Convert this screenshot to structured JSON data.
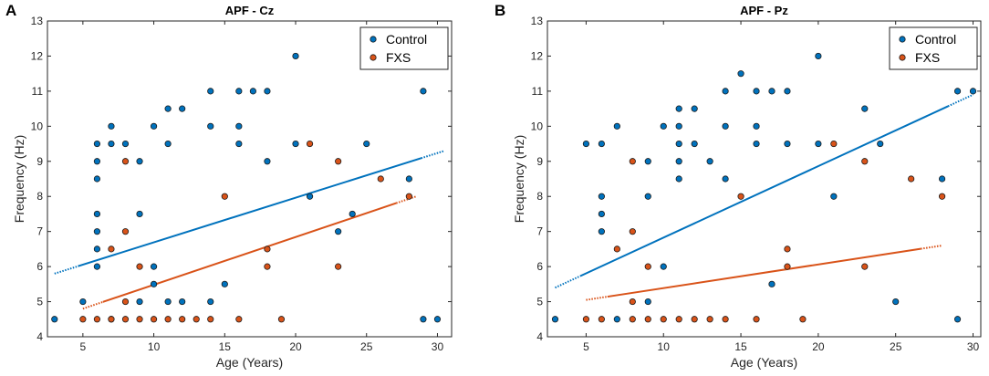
{
  "panel_labels": [
    "A",
    "B"
  ],
  "chart_data": [
    {
      "type": "scatter",
      "title": "APF - Cz",
      "xlabel": "Age (Years)",
      "ylabel": "Frequency (Hz)",
      "xlim": [
        2.5,
        31
      ],
      "ylim": [
        4,
        13
      ],
      "xticks": [
        5,
        10,
        15,
        20,
        25,
        30
      ],
      "yticks": [
        4,
        5,
        6,
        7,
        8,
        9,
        10,
        11,
        12,
        13
      ],
      "legend_position": "top-right",
      "series": [
        {
          "name": "Control",
          "color": "#0072BD",
          "points": [
            [
              3,
              4.5
            ],
            [
              5,
              5
            ],
            [
              6,
              6
            ],
            [
              6,
              6.5
            ],
            [
              6,
              7
            ],
            [
              6,
              7.5
            ],
            [
              6,
              8.5
            ],
            [
              6,
              9
            ],
            [
              6,
              9.5
            ],
            [
              7,
              9.5
            ],
            [
              7,
              10
            ],
            [
              7,
              4.5
            ],
            [
              8,
              9.5
            ],
            [
              9,
              9
            ],
            [
              9,
              7.5
            ],
            [
              9,
              5
            ],
            [
              10,
              10
            ],
            [
              10,
              6
            ],
            [
              10,
              5.5
            ],
            [
              11,
              10.5
            ],
            [
              11,
              9.5
            ],
            [
              11,
              5
            ],
            [
              12,
              10.5
            ],
            [
              12,
              5
            ],
            [
              14,
              11
            ],
            [
              14,
              10
            ],
            [
              14,
              5
            ],
            [
              15,
              5.5
            ],
            [
              16,
              11
            ],
            [
              16,
              10
            ],
            [
              16,
              9.5
            ],
            [
              17,
              11
            ],
            [
              18,
              11
            ],
            [
              18,
              9
            ],
            [
              20,
              12
            ],
            [
              20,
              9.5
            ],
            [
              21,
              8
            ],
            [
              23,
              7
            ],
            [
              24,
              7.5
            ],
            [
              25,
              9.5
            ],
            [
              28,
              8.5
            ],
            [
              29,
              11
            ],
            [
              29,
              4.5
            ],
            [
              30,
              4.5
            ]
          ],
          "fit": [
            [
              3,
              5.8
            ],
            [
              30.5,
              9.3
            ]
          ]
        },
        {
          "name": "FXS",
          "color": "#D95319",
          "points": [
            [
              5,
              4.5
            ],
            [
              6,
              4.5
            ],
            [
              7,
              6.5
            ],
            [
              7,
              4.5
            ],
            [
              8,
              9
            ],
            [
              8,
              7
            ],
            [
              8,
              5
            ],
            [
              8,
              4.5
            ],
            [
              9,
              6
            ],
            [
              9,
              4.5
            ],
            [
              10,
              4.5
            ],
            [
              11,
              4.5
            ],
            [
              12,
              4.5
            ],
            [
              13,
              4.5
            ],
            [
              14,
              4.5
            ],
            [
              15,
              8
            ],
            [
              16,
              4.5
            ],
            [
              18,
              6.5
            ],
            [
              18,
              6
            ],
            [
              19,
              4.5
            ],
            [
              21,
              9.5
            ],
            [
              23,
              9
            ],
            [
              23,
              6
            ],
            [
              26,
              8.5
            ],
            [
              28,
              8
            ]
          ],
          "fit": [
            [
              5,
              4.8
            ],
            [
              28.5,
              8
            ]
          ]
        }
      ]
    },
    {
      "type": "scatter",
      "title": "APF - Pz",
      "xlabel": "Age (Years)",
      "ylabel": "Frequency (Hz)",
      "xlim": [
        2.5,
        30.5
      ],
      "ylim": [
        4,
        13
      ],
      "xticks": [
        5,
        10,
        15,
        20,
        25,
        30
      ],
      "yticks": [
        4,
        5,
        6,
        7,
        8,
        9,
        10,
        11,
        12,
        13
      ],
      "legend_position": "top-right",
      "series": [
        {
          "name": "Control",
          "color": "#0072BD",
          "points": [
            [
              3,
              4.5
            ],
            [
              5,
              9.5
            ],
            [
              6,
              9.5
            ],
            [
              6,
              8
            ],
            [
              6,
              7.5
            ],
            [
              6,
              7
            ],
            [
              7,
              10
            ],
            [
              7,
              4.5
            ],
            [
              9,
              9
            ],
            [
              9,
              8
            ],
            [
              9,
              5
            ],
            [
              10,
              10
            ],
            [
              10,
              6
            ],
            [
              11,
              10.5
            ],
            [
              11,
              10
            ],
            [
              11,
              9.5
            ],
            [
              11,
              9
            ],
            [
              11,
              8.5
            ],
            [
              12,
              10.5
            ],
            [
              12,
              9.5
            ],
            [
              13,
              9
            ],
            [
              14,
              11
            ],
            [
              14,
              10
            ],
            [
              14,
              8.5
            ],
            [
              15,
              11.5
            ],
            [
              16,
              11
            ],
            [
              16,
              10
            ],
            [
              16,
              9.5
            ],
            [
              17,
              11
            ],
            [
              17,
              5.5
            ],
            [
              18,
              11
            ],
            [
              18,
              9.5
            ],
            [
              20,
              12
            ],
            [
              20,
              9.5
            ],
            [
              21,
              8
            ],
            [
              23,
              10.5
            ],
            [
              24,
              9.5
            ],
            [
              25,
              5
            ],
            [
              28,
              8.5
            ],
            [
              29,
              11
            ],
            [
              29,
              4.5
            ],
            [
              30,
              11
            ]
          ],
          "fit": [
            [
              3,
              5.4
            ],
            [
              30,
              10.9
            ]
          ]
        },
        {
          "name": "FXS",
          "color": "#D95319",
          "points": [
            [
              5,
              4.5
            ],
            [
              6,
              4.5
            ],
            [
              7,
              6.5
            ],
            [
              8,
              9
            ],
            [
              8,
              7
            ],
            [
              8,
              5
            ],
            [
              8,
              4.5
            ],
            [
              9,
              6
            ],
            [
              9,
              4.5
            ],
            [
              10,
              4.5
            ],
            [
              11,
              4.5
            ],
            [
              12,
              4.5
            ],
            [
              13,
              4.5
            ],
            [
              14,
              4.5
            ],
            [
              15,
              8
            ],
            [
              16,
              4.5
            ],
            [
              18,
              6.5
            ],
            [
              18,
              6
            ],
            [
              19,
              4.5
            ],
            [
              21,
              9.5
            ],
            [
              23,
              9
            ],
            [
              23,
              6
            ],
            [
              26,
              8.5
            ],
            [
              28,
              8
            ]
          ],
          "fit": [
            [
              5,
              5.05
            ],
            [
              28,
              6.6
            ]
          ]
        }
      ]
    }
  ]
}
